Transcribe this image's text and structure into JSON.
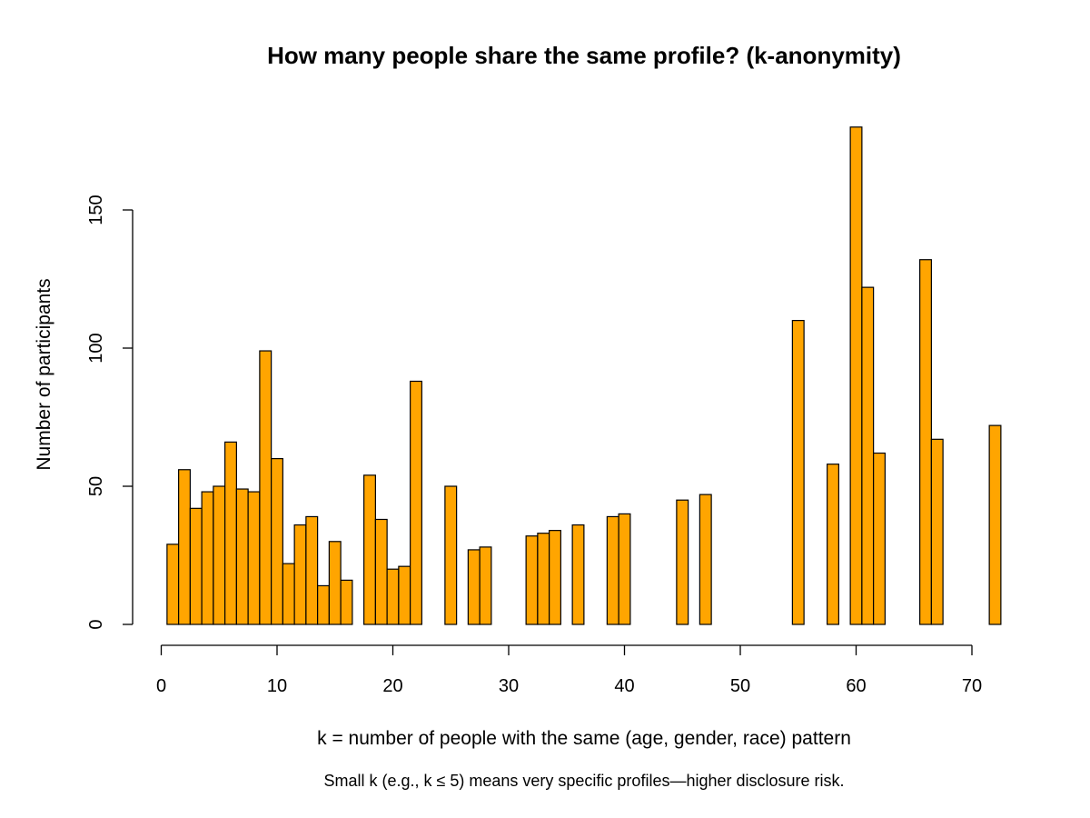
{
  "chart_data": {
    "type": "bar",
    "title": "How many people share the same profile? (k-anonymity)",
    "xlabel": "k = number of people with the same (age, gender, race) pattern",
    "ylabel": "Number of participants",
    "subtitle": "Small k (e.g., k ≤ 5) means very specific profiles—higher disclosure risk.",
    "xlim": [
      0,
      72
    ],
    "ylim": [
      0,
      180
    ],
    "x_ticks": [
      "0",
      "10",
      "20",
      "30",
      "40",
      "50",
      "60",
      "70"
    ],
    "y_ticks": [
      "0",
      "50",
      "100",
      "150"
    ],
    "bar_color": "#FFA500",
    "bar_border_color": "#000000",
    "grid": false,
    "legend": "none",
    "x": [
      1,
      2,
      3,
      4,
      5,
      6,
      7,
      8,
      9,
      10,
      11,
      12,
      13,
      14,
      15,
      16,
      18,
      19,
      20,
      21,
      22,
      25,
      27,
      28,
      32,
      33,
      34,
      36,
      39,
      40,
      45,
      47,
      55,
      58,
      60,
      61,
      62,
      66,
      67,
      72
    ],
    "values": [
      29,
      56,
      42,
      48,
      50,
      66,
      49,
      48,
      99,
      60,
      22,
      36,
      39,
      14,
      30,
      16,
      54,
      38,
      20,
      21,
      88,
      50,
      27,
      28,
      32,
      33,
      34,
      36,
      39,
      40,
      45,
      47,
      110,
      58,
      180,
      122,
      62,
      132,
      67,
      72
    ]
  }
}
